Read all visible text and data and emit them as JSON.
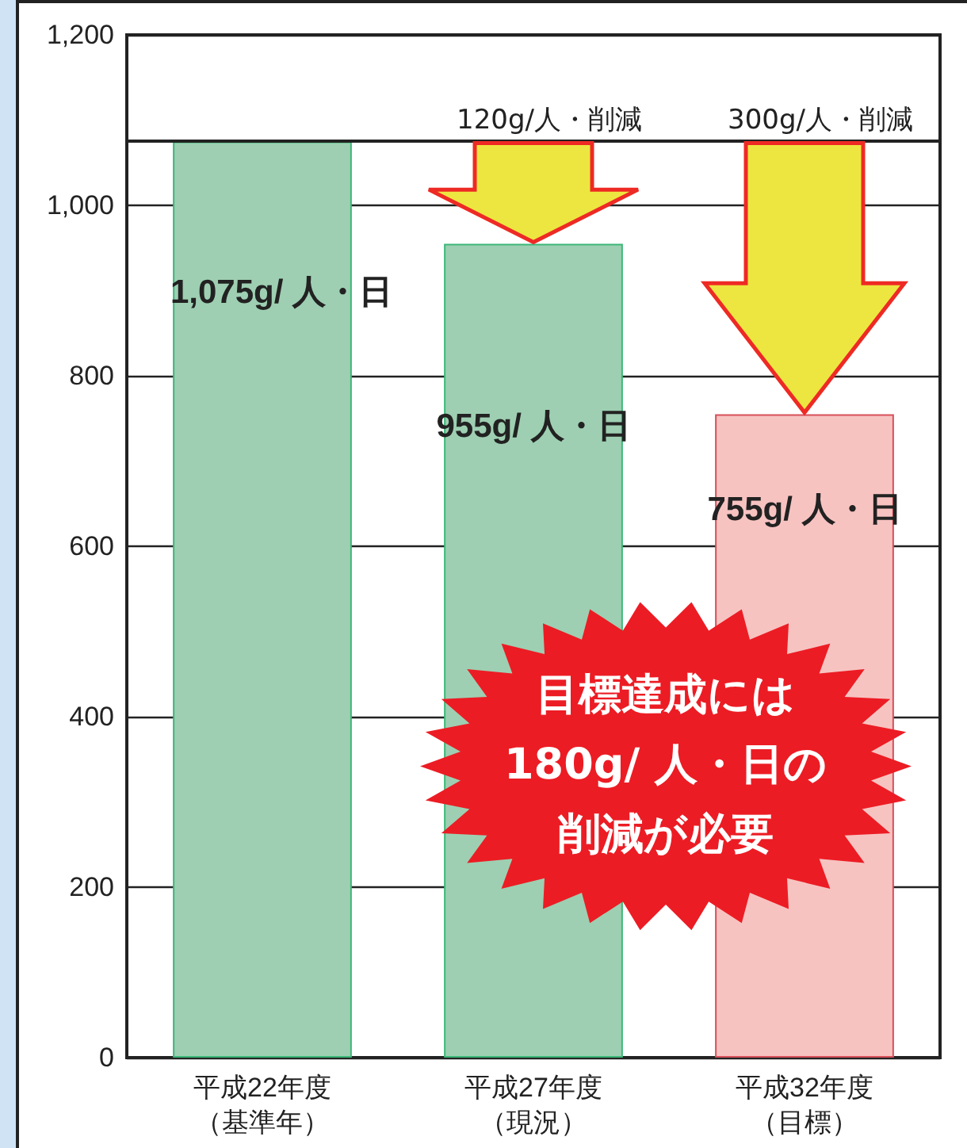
{
  "chart_data": {
    "type": "bar",
    "categories": [
      "平成22年度（基準年）",
      "平成27年度（現況）",
      "平成32年度（目標）"
    ],
    "values": [
      1075,
      955,
      755
    ],
    "colors": [
      "#9ecfb2",
      "#9ecfb2",
      "#f7c3c1"
    ],
    "value_labels": [
      "1,075g/ 人・日",
      "955g/ 人・日",
      "755g/ 人・日"
    ],
    "ylim": [
      0,
      1200
    ],
    "yticks": [
      0,
      200,
      400,
      600,
      800,
      {
        "value": 1000,
        "label": "1,000"
      },
      {
        "value": 1200,
        "label": "1,200"
      }
    ],
    "grid": "y",
    "ref_lines": [
      {
        "axis": "y",
        "value": 1075,
        "label": null,
        "color": "#222222"
      }
    ],
    "annotations": [
      {
        "text": "120g/人・削減",
        "x": "平成27年度（現況）",
        "y": 1075
      },
      {
        "text": "300g/人・削減",
        "x": "平成32年度（目標）",
        "y": 1075
      },
      "目標達成には180g/ 人・日の削減が必要"
    ]
  }
}
